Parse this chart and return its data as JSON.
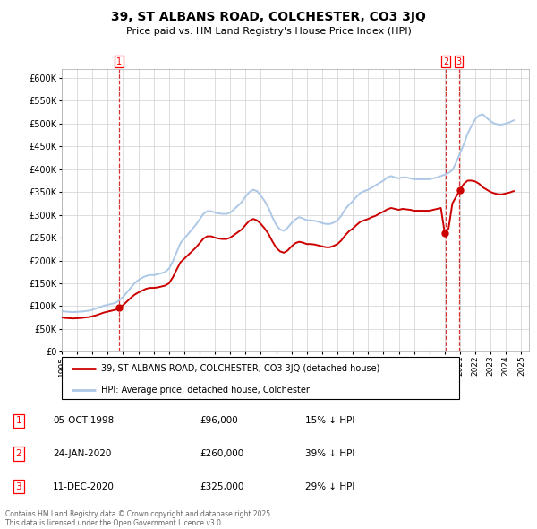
{
  "title": "39, ST ALBANS ROAD, COLCHESTER, CO3 3JQ",
  "subtitle": "Price paid vs. HM Land Registry's House Price Index (HPI)",
  "hpi_color": "#adc8e6",
  "price_color": "#cc0000",
  "dashed_color": "#cc0000",
  "bg_color": "#f5f5f5",
  "ylim": [
    0,
    620000
  ],
  "yticks": [
    0,
    50000,
    100000,
    150000,
    200000,
    250000,
    300000,
    350000,
    400000,
    450000,
    500000,
    550000,
    600000
  ],
  "transactions": [
    {
      "label": "1",
      "date": "05-OCT-1998",
      "price": 96000,
      "x": 1998.75,
      "hpi_pct": "15% ↓ HPI"
    },
    {
      "label": "2",
      "date": "24-JAN-2020",
      "price": 260000,
      "x": 2020.07,
      "hpi_pct": "39% ↓ HPI"
    },
    {
      "label": "3",
      "date": "11-DEC-2020",
      "price": 325000,
      "x": 2020.92,
      "hpi_pct": "29% ↓ HPI"
    }
  ],
  "legend_line1": "39, ST ALBANS ROAD, COLCHESTER, CO3 3JQ (detached house)",
  "legend_line2": "HPI: Average price, detached house, Colchester",
  "footnote1": "Contains HM Land Registry data © Crown copyright and database right 2025.",
  "footnote2": "This data is licensed under the Open Government Licence v3.0.",
  "hpi_data_x": [
    1995.0,
    1995.25,
    1995.5,
    1995.75,
    1996.0,
    1996.25,
    1996.5,
    1996.75,
    1997.0,
    1997.25,
    1997.5,
    1997.75,
    1998.0,
    1998.25,
    1998.5,
    1998.75,
    1999.0,
    1999.25,
    1999.5,
    1999.75,
    2000.0,
    2000.25,
    2000.5,
    2000.75,
    2001.0,
    2001.25,
    2001.5,
    2001.75,
    2002.0,
    2002.25,
    2002.5,
    2002.75,
    2003.0,
    2003.25,
    2003.5,
    2003.75,
    2004.0,
    2004.25,
    2004.5,
    2004.75,
    2005.0,
    2005.25,
    2005.5,
    2005.75,
    2006.0,
    2006.25,
    2006.5,
    2006.75,
    2007.0,
    2007.25,
    2007.5,
    2007.75,
    2008.0,
    2008.25,
    2008.5,
    2008.75,
    2009.0,
    2009.25,
    2009.5,
    2009.75,
    2010.0,
    2010.25,
    2010.5,
    2010.75,
    2011.0,
    2011.25,
    2011.5,
    2011.75,
    2012.0,
    2012.25,
    2012.5,
    2012.75,
    2013.0,
    2013.25,
    2013.5,
    2013.75,
    2014.0,
    2014.25,
    2014.5,
    2014.75,
    2015.0,
    2015.25,
    2015.5,
    2015.75,
    2016.0,
    2016.25,
    2016.5,
    2016.75,
    2017.0,
    2017.25,
    2017.5,
    2017.75,
    2018.0,
    2018.25,
    2018.5,
    2018.75,
    2019.0,
    2019.25,
    2019.5,
    2019.75,
    2020.0,
    2020.25,
    2020.5,
    2020.75,
    2021.0,
    2021.25,
    2021.5,
    2021.75,
    2022.0,
    2022.25,
    2022.5,
    2022.75,
    2023.0,
    2023.25,
    2023.5,
    2023.75,
    2024.0,
    2024.25,
    2024.5
  ],
  "hpi_data_y": [
    89000,
    88000,
    87500,
    87000,
    87500,
    88000,
    89000,
    90000,
    92000,
    95000,
    98000,
    101000,
    103000,
    105000,
    107000,
    113000,
    120000,
    130000,
    140000,
    150000,
    157000,
    162000,
    166000,
    168000,
    168000,
    170000,
    172000,
    175000,
    182000,
    198000,
    218000,
    238000,
    248000,
    258000,
    268000,
    278000,
    290000,
    302000,
    308000,
    308000,
    305000,
    303000,
    302000,
    302000,
    305000,
    312000,
    320000,
    328000,
    340000,
    350000,
    355000,
    352000,
    342000,
    330000,
    315000,
    295000,
    278000,
    268000,
    265000,
    272000,
    282000,
    290000,
    295000,
    292000,
    288000,
    288000,
    287000,
    285000,
    282000,
    280000,
    280000,
    283000,
    288000,
    298000,
    312000,
    322000,
    330000,
    340000,
    348000,
    352000,
    355000,
    360000,
    365000,
    370000,
    375000,
    382000,
    385000,
    382000,
    380000,
    382000,
    382000,
    380000,
    378000,
    378000,
    378000,
    378000,
    378000,
    380000,
    382000,
    385000,
    388000,
    392000,
    398000,
    415000,
    435000,
    455000,
    478000,
    495000,
    510000,
    518000,
    520000,
    512000,
    505000,
    500000,
    498000,
    498000,
    500000,
    503000,
    507000
  ],
  "price_data_x": [
    1995.0,
    1995.25,
    1995.5,
    1995.75,
    1996.0,
    1996.25,
    1996.5,
    1996.75,
    1997.0,
    1997.25,
    1997.5,
    1997.75,
    1998.0,
    1998.25,
    1998.5,
    1998.75,
    1999.0,
    1999.25,
    1999.5,
    1999.75,
    2000.0,
    2000.25,
    2000.5,
    2000.75,
    2001.0,
    2001.25,
    2001.5,
    2001.75,
    2002.0,
    2002.25,
    2002.5,
    2002.75,
    2003.0,
    2003.25,
    2003.5,
    2003.75,
    2004.0,
    2004.25,
    2004.5,
    2004.75,
    2005.0,
    2005.25,
    2005.5,
    2005.75,
    2006.0,
    2006.25,
    2006.5,
    2006.75,
    2007.0,
    2007.25,
    2007.5,
    2007.75,
    2008.0,
    2008.25,
    2008.5,
    2008.75,
    2009.0,
    2009.25,
    2009.5,
    2009.75,
    2010.0,
    2010.25,
    2010.5,
    2010.75,
    2011.0,
    2011.25,
    2011.5,
    2011.75,
    2012.0,
    2012.25,
    2012.5,
    2012.75,
    2013.0,
    2013.25,
    2013.5,
    2013.75,
    2014.0,
    2014.25,
    2014.5,
    2014.75,
    2015.0,
    2015.25,
    2015.5,
    2015.75,
    2016.0,
    2016.25,
    2016.5,
    2016.75,
    2017.0,
    2017.25,
    2017.5,
    2017.75,
    2018.0,
    2018.25,
    2018.5,
    2018.75,
    2019.0,
    2019.25,
    2019.5,
    2019.75,
    2020.0,
    2020.25,
    2020.5,
    2020.75,
    2021.0,
    2021.25,
    2021.5,
    2021.75,
    2022.0,
    2022.25,
    2022.5,
    2022.75,
    2023.0,
    2023.25,
    2023.5,
    2023.75,
    2024.0,
    2024.25,
    2024.5
  ],
  "price_data_y": [
    75000,
    74000,
    73500,
    73000,
    73500,
    74000,
    75000,
    76000,
    78000,
    80000,
    83000,
    86000,
    88000,
    90000,
    92000,
    96000,
    102000,
    110000,
    118000,
    125000,
    130000,
    134000,
    138000,
    140000,
    140000,
    141000,
    143000,
    145000,
    150000,
    163000,
    180000,
    196000,
    204000,
    212000,
    220000,
    228000,
    238000,
    248000,
    253000,
    253000,
    250000,
    248000,
    247000,
    247000,
    250000,
    256000,
    262000,
    268000,
    278000,
    287000,
    291000,
    288000,
    280000,
    270000,
    258000,
    242000,
    228000,
    220000,
    217000,
    222000,
    231000,
    238000,
    241000,
    239000,
    236000,
    236000,
    235000,
    233000,
    231000,
    229000,
    229000,
    232000,
    236000,
    244000,
    255000,
    264000,
    270000,
    278000,
    285000,
    288000,
    291000,
    295000,
    298000,
    303000,
    307000,
    312000,
    315000,
    313000,
    311000,
    313000,
    312000,
    311000,
    309000,
    309000,
    309000,
    309000,
    309000,
    311000,
    313000,
    315000,
    260000,
    270000,
    325000,
    340000,
    355000,
    368000,
    375000,
    375000,
    373000,
    368000,
    360000,
    355000,
    350000,
    347000,
    345000,
    345000,
    347000,
    349000,
    352000
  ]
}
